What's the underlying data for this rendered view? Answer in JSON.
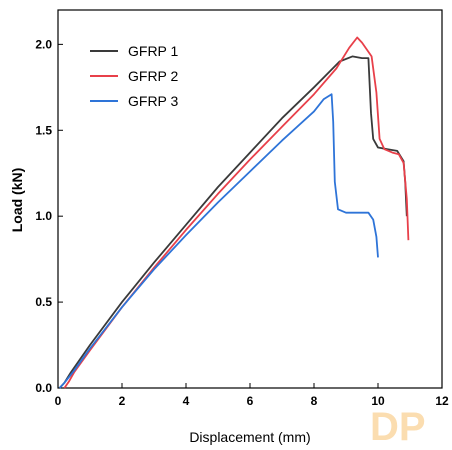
{
  "chart_data": {
    "type": "line",
    "xlabel": "Displacement (mm)",
    "ylabel": "Load (kN)",
    "xlim": [
      0,
      12
    ],
    "ylim": [
      0,
      2.2
    ],
    "xticks": [
      0,
      2,
      4,
      6,
      8,
      10,
      12
    ],
    "yticks": [
      0.0,
      0.5,
      1.0,
      1.5,
      2.0
    ],
    "xtick_labels": [
      "0",
      "2",
      "4",
      "6",
      "8",
      "10",
      "12"
    ],
    "ytick_labels": [
      "0.0",
      "0.5",
      "1.0",
      "1.5",
      "2.0"
    ],
    "grid": false,
    "legend_position": "top-left",
    "series": [
      {
        "name": "GFRP 1",
        "color": "#3a3a3a",
        "points": [
          [
            0.05,
            0.0
          ],
          [
            0.2,
            0.03
          ],
          [
            0.4,
            0.09
          ],
          [
            1,
            0.25
          ],
          [
            2,
            0.5
          ],
          [
            3,
            0.73
          ],
          [
            4,
            0.95
          ],
          [
            5,
            1.17
          ],
          [
            6,
            1.37
          ],
          [
            7,
            1.57
          ],
          [
            8,
            1.75
          ],
          [
            8.8,
            1.9
          ],
          [
            9.2,
            1.93
          ],
          [
            9.5,
            1.92
          ],
          [
            9.7,
            1.92
          ],
          [
            9.78,
            1.6
          ],
          [
            9.85,
            1.45
          ],
          [
            10,
            1.4
          ],
          [
            10.3,
            1.39
          ],
          [
            10.6,
            1.38
          ],
          [
            10.8,
            1.32
          ],
          [
            10.85,
            1.2
          ],
          [
            10.9,
            1.0
          ]
        ]
      },
      {
        "name": "GFRP 2",
        "color": "#e8404a",
        "points": [
          [
            0.2,
            0.0
          ],
          [
            0.35,
            0.04
          ],
          [
            0.5,
            0.09
          ],
          [
            1,
            0.22
          ],
          [
            2,
            0.47
          ],
          [
            3,
            0.7
          ],
          [
            4,
            0.92
          ],
          [
            5,
            1.13
          ],
          [
            6,
            1.33
          ],
          [
            7,
            1.52
          ],
          [
            8,
            1.71
          ],
          [
            8.7,
            1.86
          ],
          [
            9.1,
            1.98
          ],
          [
            9.35,
            2.04
          ],
          [
            9.5,
            2.01
          ],
          [
            9.8,
            1.93
          ],
          [
            9.95,
            1.72
          ],
          [
            10.05,
            1.45
          ],
          [
            10.2,
            1.39
          ],
          [
            10.45,
            1.37
          ],
          [
            10.65,
            1.36
          ],
          [
            10.8,
            1.31
          ],
          [
            10.9,
            1.1
          ],
          [
            10.95,
            0.86
          ]
        ]
      },
      {
        "name": "GFRP 3",
        "color": "#2e74d8",
        "points": [
          [
            0.05,
            0.0
          ],
          [
            0.2,
            0.03
          ],
          [
            0.5,
            0.1
          ],
          [
            1,
            0.23
          ],
          [
            2,
            0.47
          ],
          [
            3,
            0.69
          ],
          [
            4,
            0.89
          ],
          [
            5,
            1.08
          ],
          [
            6,
            1.26
          ],
          [
            7,
            1.44
          ],
          [
            8,
            1.61
          ],
          [
            8.3,
            1.68
          ],
          [
            8.55,
            1.71
          ],
          [
            8.6,
            1.55
          ],
          [
            8.65,
            1.2
          ],
          [
            8.75,
            1.04
          ],
          [
            9,
            1.02
          ],
          [
            9.4,
            1.02
          ],
          [
            9.7,
            1.02
          ],
          [
            9.85,
            0.98
          ],
          [
            9.95,
            0.88
          ],
          [
            10.0,
            0.76
          ]
        ]
      }
    ]
  }
}
